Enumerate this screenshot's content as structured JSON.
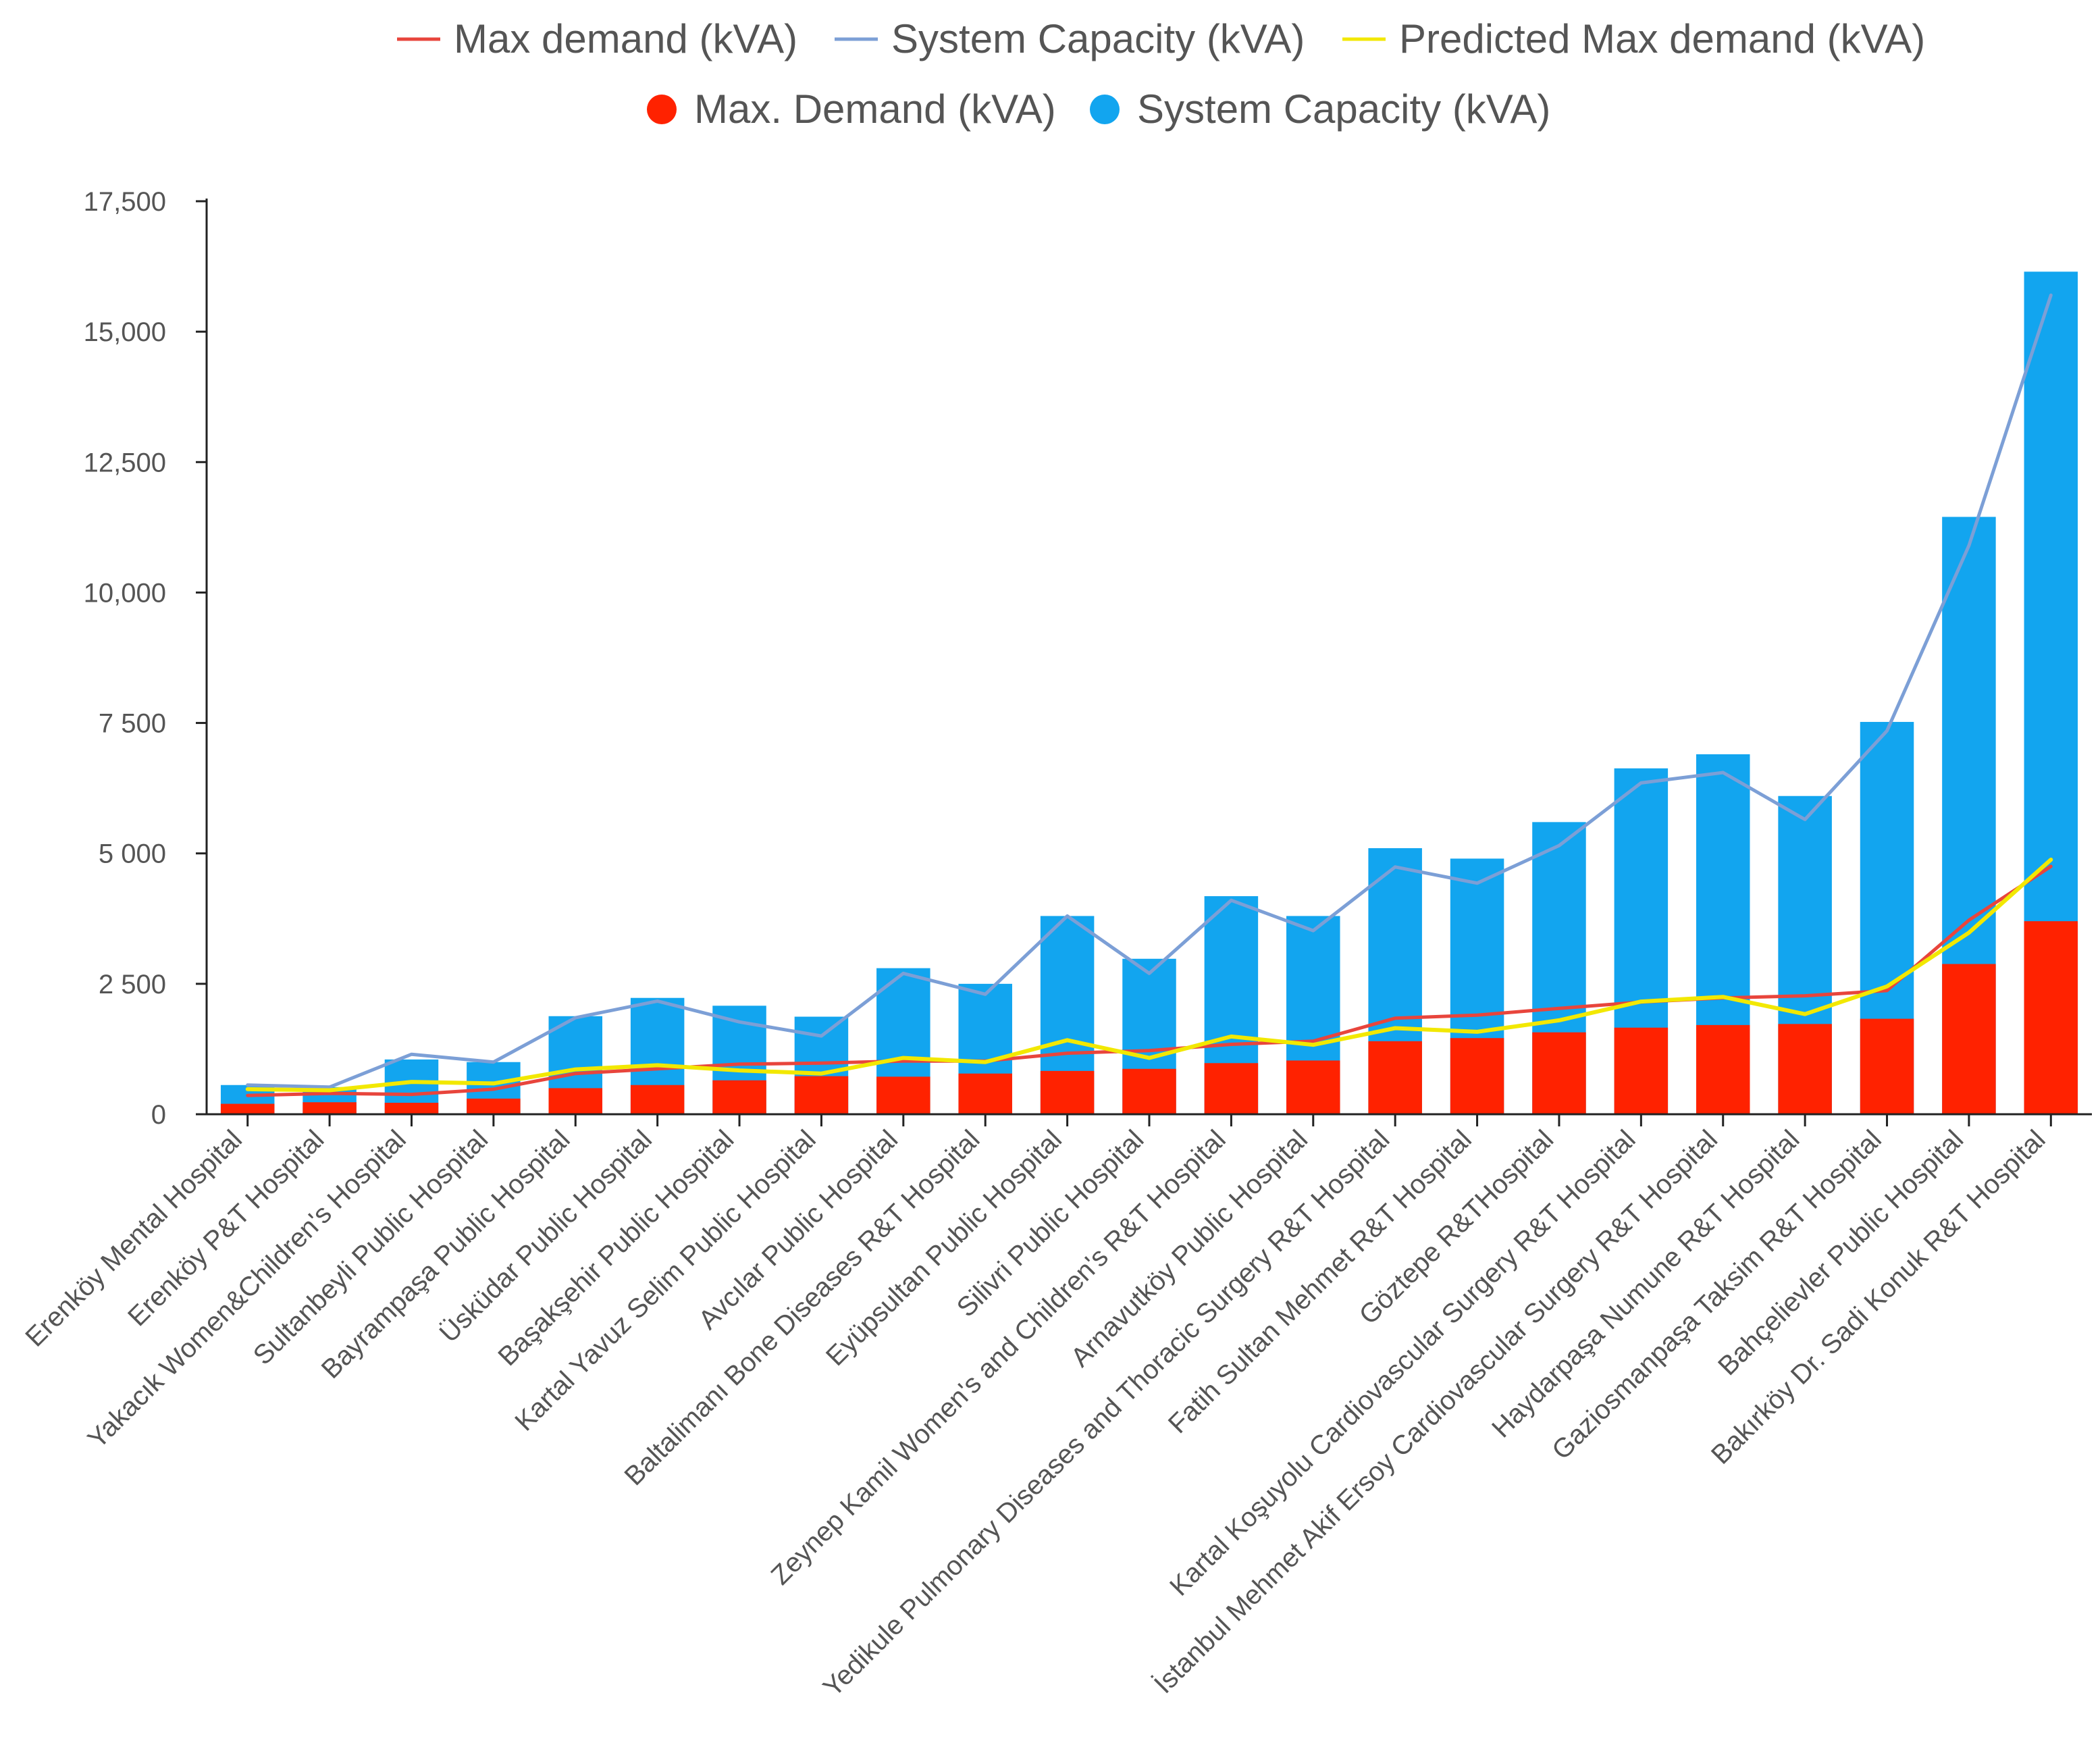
{
  "chart_data": {
    "type": "bar",
    "stacked": true,
    "title": "",
    "xlabel": "",
    "ylabel": "",
    "ylim": [
      0,
      17500
    ],
    "yticks": [
      0,
      2500,
      5000,
      7500,
      10000,
      12500,
      15000,
      17500
    ],
    "ytick_labels": [
      "0",
      "2 500",
      "5 000",
      "7 500",
      "10,000",
      "12,500",
      "15,000",
      "17,500"
    ],
    "categories": [
      "Erenköy Mental Hospital",
      "Erenköy P&T Hospital",
      "Yakacık Women&Children's Hospital",
      "Sultanbeyli Public Hospital",
      "Bayrampaşa Public Hospital",
      "Üsküdar Public Hospital",
      "Başakşehir Public Hospital",
      "Kartal Yavuz Selim Public Hospital",
      "Avcılar Public Hospital",
      "Baltalimanı Bone Diseases R&T Hospital",
      "Eyüpsultan Public Hospital",
      "Silivri Public Hospital",
      "Zeynep Kamil Women's and Children's R&T Hospital",
      "Arnavutköy Public Hospital",
      "Yedikule Pulmonary Diseases and Thoracic Surgery R&T Hospital",
      "Fatih Sultan Mehmet R&T Hospital",
      "Göztepe R&THospital",
      "Kartal Koşuyolu Cardiovascular Surgery R&T Hospital",
      "İstanbul Mehmet Akif Ersoy Cardiovascular Surgery R&T Hospital",
      "Haydarpaşa Numune R&T Hospital",
      "Gaziosmanpaşa Taksim R&T Hospital",
      "Bahçelievler Public Hospital",
      "Bakırköy Dr. Sadi Konuk R&T Hospital"
    ],
    "bar_series": [
      {
        "name": "Max. Demand (kVA)",
        "color": "#ff2200",
        "values": [
          200,
          230,
          220,
          300,
          500,
          560,
          650,
          730,
          720,
          780,
          830,
          870,
          980,
          1030,
          1400,
          1460,
          1570,
          1660,
          1710,
          1730,
          1830,
          2880,
          3700
        ]
      },
      {
        "name": "System Capacity (kVA)",
        "color": "#12a5ef",
        "values": [
          560,
          520,
          1050,
          1000,
          1880,
          2230,
          2080,
          1870,
          2800,
          2500,
          3800,
          2980,
          4180,
          3800,
          5100,
          4900,
          5600,
          6630,
          6900,
          6100,
          7520,
          11450,
          16150
        ]
      }
    ],
    "line_series": [
      {
        "name": "Max demand (kVA)",
        "color": "#e8453c",
        "values": [
          360,
          400,
          380,
          480,
          780,
          870,
          960,
          980,
          1020,
          1020,
          1170,
          1220,
          1340,
          1400,
          1840,
          1900,
          2030,
          2150,
          2230,
          2270,
          2370,
          3720,
          4750
        ]
      },
      {
        "name": "System Capacity (kVA)",
        "color": "#7c9fd6",
        "values": [
          560,
          520,
          1150,
          1000,
          1850,
          2170,
          1770,
          1500,
          2700,
          2300,
          3800,
          2700,
          4100,
          3520,
          4740,
          4430,
          5150,
          6350,
          6550,
          5650,
          7350,
          10900,
          15700
        ]
      },
      {
        "name": "Predicted Max demand (kVA)",
        "color": "#f2e800",
        "values": [
          480,
          460,
          620,
          590,
          860,
          940,
          840,
          780,
          1080,
          1000,
          1420,
          1080,
          1490,
          1330,
          1650,
          1580,
          1800,
          2160,
          2250,
          1920,
          2450,
          3480,
          4880
        ]
      }
    ],
    "legend_position": "top-center",
    "grid": false
  },
  "legend": {
    "row1": [
      {
        "label": "Max demand (kVA)",
        "type": "line",
        "color": "#e8453c"
      },
      {
        "label": "System Capacity (kVA)",
        "type": "line",
        "color": "#7c9fd6"
      },
      {
        "label": "Predicted Max demand (kVA)",
        "type": "line",
        "color": "#f2e800"
      }
    ],
    "row2": [
      {
        "label": "Max. Demand (kVA)",
        "type": "dot",
        "color": "#ff2200"
      },
      {
        "label": "System Capacity (kVA)",
        "type": "dot",
        "color": "#12a5ef"
      }
    ]
  }
}
